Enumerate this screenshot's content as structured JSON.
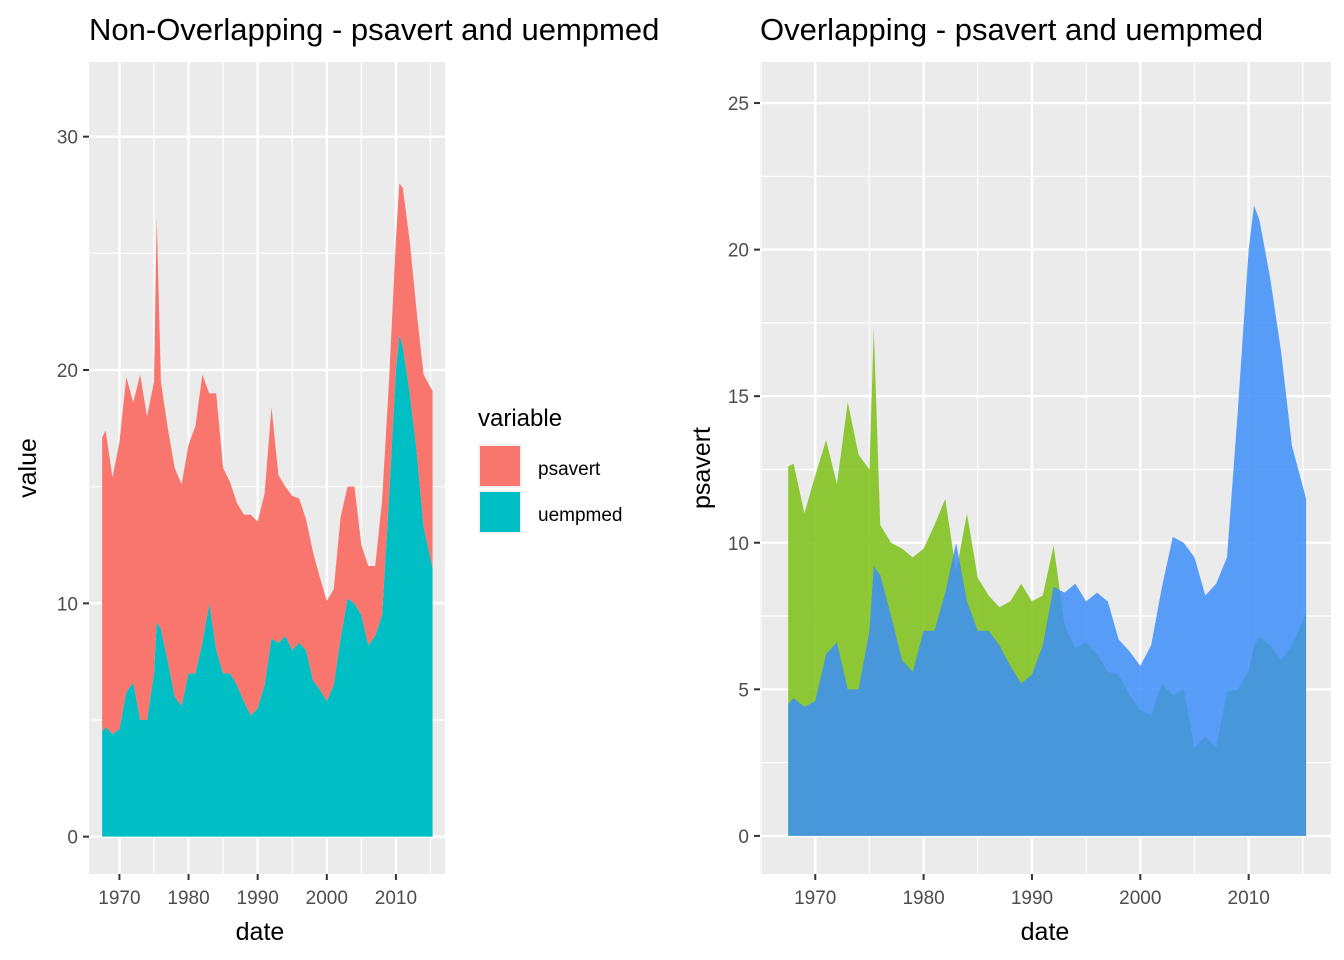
{
  "chart_data": [
    {
      "type": "area",
      "stacking": "stacked",
      "title": "Non-Overlapping - psavert and uempmed",
      "xlabel": "date",
      "ylabel": "value",
      "x_ticks": [
        1970,
        1980,
        1990,
        2000,
        2010
      ],
      "y_ticks": [
        0,
        10,
        20,
        30
      ],
      "xlim": [
        1965.6,
        2017.1
      ],
      "ylim": [
        -1.6,
        33.2
      ],
      "grid": true,
      "legend": {
        "title": "variable",
        "position": "right",
        "entries": [
          {
            "label": "psavert",
            "color": "#F8766D"
          },
          {
            "label": "uempmed",
            "color": "#00BFC4"
          }
        ]
      },
      "x": [
        1967.5,
        1968.0,
        1969.0,
        1970.0,
        1971.0,
        1972.0,
        1973.0,
        1974.0,
        1975.0,
        1975.4,
        1976.0,
        1977.0,
        1978.0,
        1979.0,
        1980.0,
        1981.0,
        1982.0,
        1983.0,
        1984.0,
        1985.0,
        1986.0,
        1987.0,
        1988.0,
        1989.0,
        1990.0,
        1991.0,
        1992.0,
        1993.0,
        1994.0,
        1995.0,
        1996.0,
        1997.0,
        1998.0,
        1999.0,
        2000.0,
        2001.0,
        2002.0,
        2003.0,
        2004.0,
        2005.0,
        2006.0,
        2007.0,
        2008.0,
        2009.0,
        2010.0,
        2010.5,
        2011.0,
        2012.0,
        2013.0,
        2014.0,
        2015.3
      ],
      "series": [
        {
          "name": "uempmed",
          "color": "#00BFC4",
          "values": [
            4.5,
            4.7,
            4.4,
            4.6,
            6.2,
            6.6,
            5.0,
            5.0,
            7.0,
            9.2,
            8.9,
            7.5,
            6.0,
            5.6,
            7.0,
            7.0,
            8.3,
            10.0,
            8.0,
            7.0,
            7.0,
            6.5,
            5.8,
            5.2,
            5.5,
            6.5,
            8.5,
            8.3,
            8.6,
            8.0,
            8.3,
            8.0,
            6.7,
            6.3,
            5.8,
            6.5,
            8.5,
            10.2,
            10.0,
            9.5,
            8.2,
            8.6,
            9.5,
            14.5,
            20.0,
            21.5,
            21.0,
            19.0,
            16.5,
            13.3,
            11.5
          ]
        },
        {
          "name": "psavert",
          "color": "#F8766D",
          "values": [
            12.6,
            12.7,
            11.0,
            12.3,
            13.5,
            12.0,
            14.8,
            13.0,
            12.5,
            17.3,
            10.6,
            10.0,
            9.8,
            9.5,
            9.8,
            10.6,
            11.5,
            9.0,
            11.0,
            8.8,
            8.2,
            7.8,
            8.0,
            8.6,
            8.0,
            8.2,
            9.9,
            7.2,
            6.4,
            6.6,
            6.2,
            5.6,
            5.5,
            4.8,
            4.3,
            4.1,
            5.2,
            4.8,
            5.0,
            3.0,
            3.4,
            3.0,
            4.9,
            5.0,
            5.6,
            6.5,
            6.8,
            6.5,
            6.0,
            6.5,
            7.6
          ]
        }
      ]
    },
    {
      "type": "area",
      "stacking": "overlapping",
      "title": "Overlapping - psavert and uempmed",
      "xlabel": "date",
      "ylabel": "psavert",
      "x_ticks": [
        1970,
        1980,
        1990,
        2000,
        2010
      ],
      "y_ticks": [
        0,
        5,
        10,
        15,
        20,
        25
      ],
      "xlim": [
        1964.9,
        2017.6
      ],
      "ylim": [
        -1.3,
        26.4
      ],
      "grid": true,
      "x": [
        1967.5,
        1968.0,
        1969.0,
        1970.0,
        1971.0,
        1972.0,
        1973.0,
        1974.0,
        1975.0,
        1975.4,
        1976.0,
        1977.0,
        1978.0,
        1979.0,
        1980.0,
        1981.0,
        1982.0,
        1983.0,
        1984.0,
        1985.0,
        1986.0,
        1987.0,
        1988.0,
        1989.0,
        1990.0,
        1991.0,
        1992.0,
        1993.0,
        1994.0,
        1995.0,
        1996.0,
        1997.0,
        1998.0,
        1999.0,
        2000.0,
        2001.0,
        2002.0,
        2003.0,
        2004.0,
        2005.0,
        2006.0,
        2007.0,
        2008.0,
        2009.0,
        2010.0,
        2010.5,
        2011.0,
        2012.0,
        2013.0,
        2014.0,
        2015.3
      ],
      "series": [
        {
          "name": "psavert",
          "color": "#7CC115",
          "values": [
            12.6,
            12.7,
            11.0,
            12.3,
            13.5,
            12.0,
            14.8,
            13.0,
            12.5,
            17.3,
            10.6,
            10.0,
            9.8,
            9.5,
            9.8,
            10.6,
            11.5,
            9.0,
            11.0,
            8.8,
            8.2,
            7.8,
            8.0,
            8.6,
            8.0,
            8.2,
            9.9,
            7.2,
            6.4,
            6.6,
            6.2,
            5.6,
            5.5,
            4.8,
            4.3,
            4.1,
            5.2,
            4.8,
            5.0,
            3.0,
            3.4,
            3.0,
            4.9,
            5.0,
            5.6,
            6.5,
            6.8,
            6.5,
            6.0,
            6.5,
            7.6
          ]
        },
        {
          "name": "uempmed",
          "color": "#3D8EF8",
          "values": [
            4.5,
            4.7,
            4.4,
            4.6,
            6.2,
            6.6,
            5.0,
            5.0,
            7.0,
            9.2,
            8.9,
            7.5,
            6.0,
            5.6,
            7.0,
            7.0,
            8.3,
            10.0,
            8.0,
            7.0,
            7.0,
            6.5,
            5.8,
            5.2,
            5.5,
            6.5,
            8.5,
            8.3,
            8.6,
            8.0,
            8.3,
            8.0,
            6.7,
            6.3,
            5.8,
            6.5,
            8.5,
            10.2,
            10.0,
            9.5,
            8.2,
            8.6,
            9.5,
            14.5,
            20.0,
            21.5,
            21.0,
            19.0,
            16.5,
            13.3,
            11.5
          ]
        }
      ]
    }
  ]
}
